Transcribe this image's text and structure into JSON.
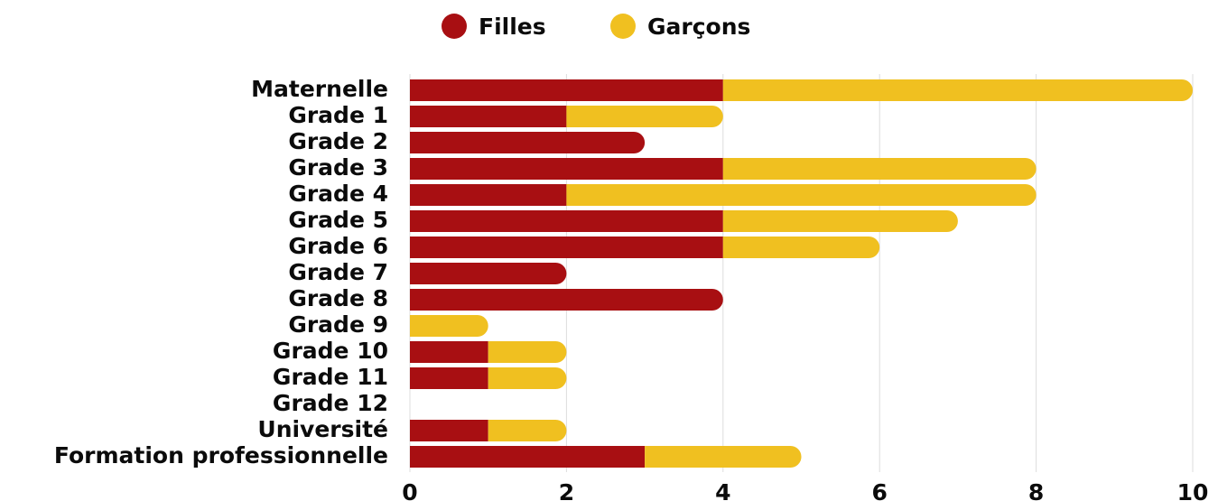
{
  "chart_data": {
    "type": "bar",
    "orientation": "horizontal",
    "stacked": true,
    "categories": [
      "Maternelle",
      "Grade 1",
      "Grade 2",
      "Grade 3",
      "Grade 4",
      "Grade 5",
      "Grade 6",
      "Grade 7",
      "Grade 8",
      "Grade 9",
      "Grade 10",
      "Grade 11",
      "Grade 12",
      "Université",
      "Formation professionnelle"
    ],
    "series": [
      {
        "name": "Filles",
        "color": "#a80f12",
        "values": [
          4,
          2,
          3,
          4,
          2,
          4,
          4,
          2,
          4,
          0,
          1,
          1,
          0,
          1,
          3
        ]
      },
      {
        "name": "Garçons",
        "color": "#f0c020",
        "values": [
          6,
          2,
          0,
          4,
          6,
          3,
          2,
          0,
          0,
          1,
          1,
          1,
          0,
          1,
          2
        ]
      }
    ],
    "xlim": [
      0,
      10
    ],
    "xticks": [
      "0",
      "2",
      "4",
      "6",
      "8",
      "10"
    ],
    "grid": true,
    "legend_position": "top-center"
  }
}
